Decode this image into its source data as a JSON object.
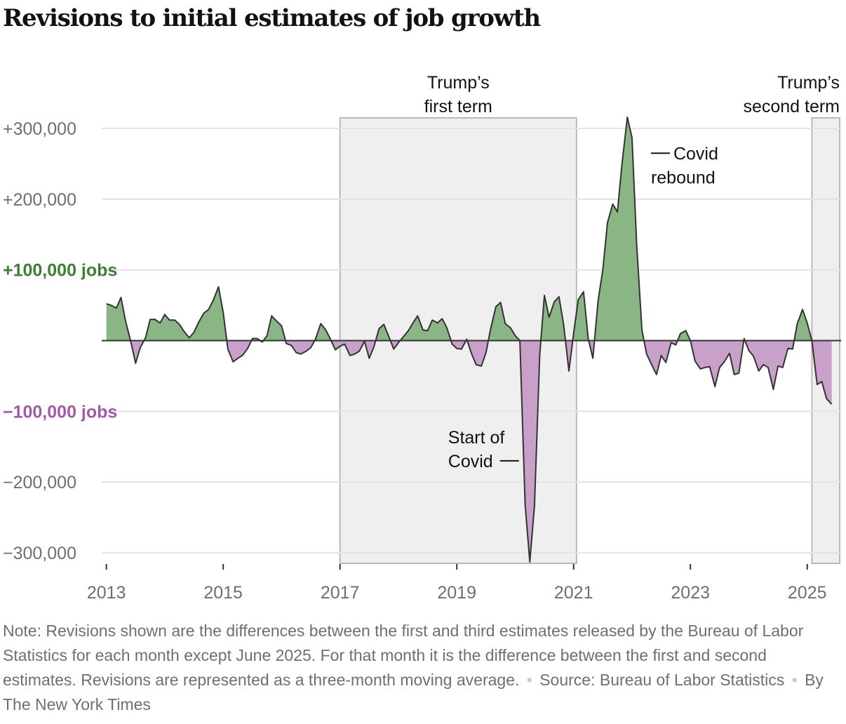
{
  "header": {
    "title": "Revisions to initial estimates of job growth"
  },
  "chart_data": {
    "type": "area",
    "title": "Revisions to initial estimates of job growth",
    "xlabel": "",
    "ylabel": "",
    "x_ticks": [
      "2013",
      "2015",
      "2017",
      "2019",
      "2021",
      "2023",
      "2025"
    ],
    "y_tick_labels": [
      {
        "value": 300000,
        "label": "+300,000",
        "style": "plain"
      },
      {
        "value": 200000,
        "label": "+200,000",
        "style": "plain"
      },
      {
        "value": 100000,
        "label": "+100,000 jobs",
        "style": "positive"
      },
      {
        "value": -100000,
        "label": "−100,000 jobs",
        "style": "negative"
      },
      {
        "value": -200000,
        "label": "−200,000",
        "style": "plain"
      },
      {
        "value": -300000,
        "label": "−300,000",
        "style": "plain"
      }
    ],
    "ylim": [
      -315000,
      315000
    ],
    "xlim": [
      2012.92,
      2025.58
    ],
    "colors": {
      "positive": "#8ab584",
      "negative": "#c9a0c9",
      "positive_label": "#3e7e35",
      "negative_label": "#a35aa6",
      "line": "#333333",
      "shade": "#efefef"
    },
    "shaded_periods": [
      {
        "start": 2017.0,
        "end": 2021.05,
        "label": [
          "Trump’s",
          "first term"
        ]
      },
      {
        "start": 2025.08,
        "end": 2025.68,
        "label": [
          "Trump’s",
          "second term"
        ]
      }
    ],
    "annotations": [
      {
        "text": [
          "Covid",
          "rebound"
        ],
        "x": 2022.0,
        "y": 265000
      },
      {
        "text": [
          "Start of",
          "Covid"
        ],
        "x": 2020.1,
        "y": -170000
      }
    ],
    "series": [
      {
        "name": "Three-month moving average of revisions",
        "x": [
          2013.0,
          2013.08,
          2013.17,
          2013.25,
          2013.33,
          2013.42,
          2013.5,
          2013.58,
          2013.67,
          2013.75,
          2013.83,
          2013.92,
          2014.0,
          2014.08,
          2014.17,
          2014.25,
          2014.33,
          2014.42,
          2014.5,
          2014.58,
          2014.67,
          2014.75,
          2014.83,
          2014.92,
          2015.0,
          2015.08,
          2015.17,
          2015.25,
          2015.33,
          2015.42,
          2015.5,
          2015.58,
          2015.67,
          2015.75,
          2015.83,
          2015.92,
          2016.0,
          2016.08,
          2016.17,
          2016.25,
          2016.33,
          2016.42,
          2016.5,
          2016.58,
          2016.67,
          2016.75,
          2016.83,
          2016.92,
          2017.0,
          2017.08,
          2017.17,
          2017.25,
          2017.33,
          2017.42,
          2017.5,
          2017.58,
          2017.67,
          2017.75,
          2017.83,
          2017.92,
          2018.0,
          2018.08,
          2018.17,
          2018.25,
          2018.33,
          2018.42,
          2018.5,
          2018.58,
          2018.67,
          2018.75,
          2018.83,
          2018.92,
          2019.0,
          2019.08,
          2019.17,
          2019.25,
          2019.33,
          2019.42,
          2019.5,
          2019.58,
          2019.67,
          2019.75,
          2019.83,
          2019.92,
          2020.0,
          2020.08,
          2020.17,
          2020.25,
          2020.33,
          2020.42,
          2020.5,
          2020.58,
          2020.67,
          2020.75,
          2020.83,
          2020.92,
          2021.0,
          2021.08,
          2021.17,
          2021.25,
          2021.33,
          2021.42,
          2021.5,
          2021.58,
          2021.67,
          2021.75,
          2021.83,
          2021.92,
          2022.0,
          2022.08,
          2022.17,
          2022.25,
          2022.33,
          2022.42,
          2022.5,
          2022.58,
          2022.67,
          2022.75,
          2022.83,
          2022.92,
          2023.0,
          2023.08,
          2023.17,
          2023.25,
          2023.33,
          2023.42,
          2023.5,
          2023.58,
          2023.67,
          2023.75,
          2023.83,
          2023.92,
          2024.0,
          2024.08,
          2024.17,
          2024.25,
          2024.33,
          2024.42,
          2024.5,
          2024.58,
          2024.67,
          2024.75,
          2024.83,
          2024.92,
          2025.0,
          2025.08,
          2025.17,
          2025.25,
          2025.33,
          2025.42
        ],
        "y": [
          52000,
          50000,
          46000,
          61000,
          27000,
          -2000,
          -32000,
          -10000,
          4000,
          30000,
          30000,
          25000,
          37000,
          29000,
          29000,
          23000,
          13000,
          4000,
          12000,
          26000,
          39000,
          44000,
          57000,
          76000,
          40000,
          -12000,
          -30000,
          -25000,
          -21000,
          -11000,
          3000,
          3000,
          -2000,
          7000,
          35000,
          27000,
          21000,
          -4000,
          -7000,
          -17000,
          -19000,
          -15000,
          -10000,
          2000,
          24000,
          16000,
          3000,
          -13000,
          -8000,
          -5000,
          -21000,
          -19000,
          -15000,
          -1000,
          -25000,
          -9000,
          17000,
          23000,
          7000,
          -12000,
          -3000,
          5000,
          14000,
          25000,
          35000,
          15000,
          14000,
          29000,
          25000,
          31000,
          18000,
          -5000,
          -11000,
          -12000,
          2000,
          -18000,
          -34000,
          -36000,
          -17000,
          17000,
          48000,
          54000,
          24000,
          18000,
          7000,
          0,
          -232000,
          -313000,
          -234000,
          -20000,
          64000,
          33000,
          55000,
          62000,
          22000,
          -43000,
          10000,
          58000,
          69000,
          3000,
          -25000,
          57000,
          100000,
          167000,
          193000,
          182000,
          251000,
          316000,
          287000,
          136000,
          15000,
          -19000,
          -33000,
          -48000,
          -21000,
          -31000,
          -3000,
          -6000,
          10000,
          14000,
          0,
          -29000,
          -40000,
          -38000,
          -37000,
          -65000,
          -38000,
          -30000,
          -18000,
          -48000,
          -46000,
          3000,
          -14000,
          -22000,
          -43000,
          -34000,
          -38000,
          -69000,
          -36000,
          -38000,
          -11000,
          -12000,
          24000,
          44000,
          25000,
          0,
          -62000,
          -58000,
          -82000,
          -90000
        ]
      }
    ]
  },
  "footer": {
    "note": "Note: Revisions shown are the differences between the first and third estimates released by the Bureau of Labor Statistics for each month except June 2025. For that month it is the difference between the first and second estimates. Revisions are represented as a three-month moving average.",
    "source": "Source: Bureau of Labor Statistics",
    "byline": "By The New York Times",
    "separator": "•"
  }
}
